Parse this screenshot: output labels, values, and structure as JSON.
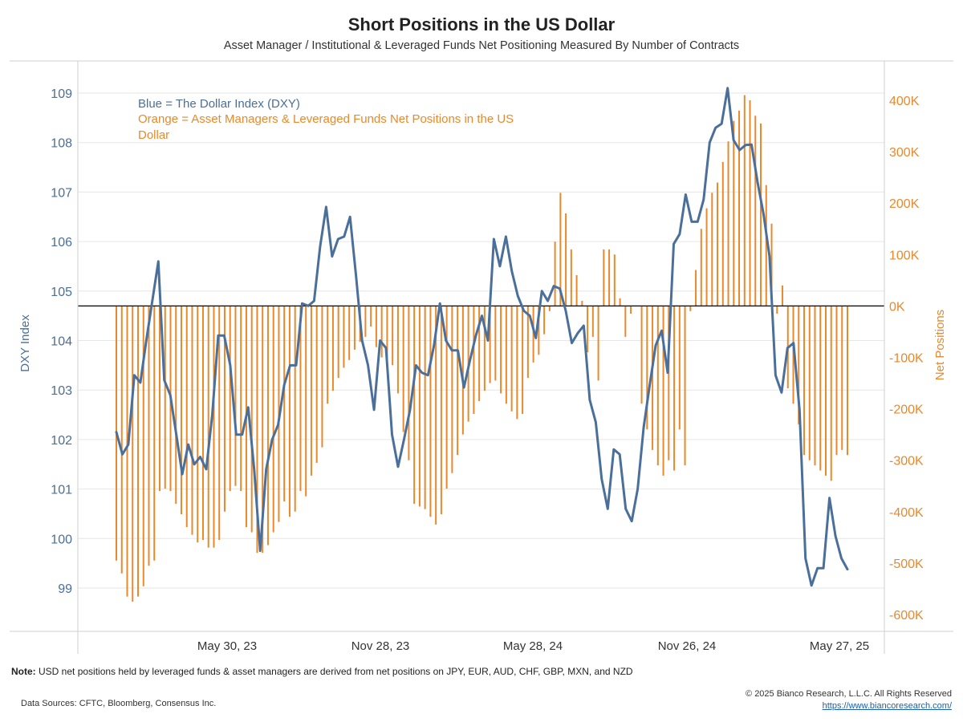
{
  "header": {
    "title": "Short Positions in the US Dollar",
    "subtitle": "Asset Manager / Institutional & Leveraged Funds Net Positioning Measured By Number of Contracts"
  },
  "footer": {
    "note_label": "Note:",
    "note_text": " USD net positions held by leveraged funds & asset managers are derived from net positions on JPY, EUR, AUD, CHF, GBP, MXN, and NZD",
    "sources": "Data Sources: CFTC, Bloomberg, Consensus Inc.",
    "copyright": "© 2025 Bianco Research, L.L.C. All Rights Reserved",
    "url": "https://www.biancoresearch.com/"
  },
  "chart_data": {
    "type": "line",
    "title": "Short Positions in the US Dollar",
    "subtitle": "Asset Manager / Institutional & Leveraged Funds Net Positioning Measured By Number of Contracts",
    "y_left_label": "DXY Index",
    "y_right_label": "Net Positions",
    "y_left_range": [
      98.2,
      109.6
    ],
    "y_right_range": [
      -630000,
      450000
    ],
    "y_left_ticks": [
      "109",
      "108",
      "107",
      "106",
      "105",
      "104",
      "103",
      "102",
      "101",
      "100",
      "99"
    ],
    "y_right_ticks": [
      "400K",
      "300K",
      "200K",
      "100K",
      "0K",
      "-100K",
      "-200K",
      "-300K",
      "-400K",
      "-500K",
      "-600K"
    ],
    "x_ticks": [
      "May 30, 23",
      "Nov 28, 23",
      "May 28, 24",
      "Nov 26, 24",
      "May 27, 25"
    ],
    "x_range": [
      "2023-01-03",
      "2025-06-10"
    ],
    "grid": true,
    "legend_text": {
      "blue": "Blue = The Dollar Index (DXY)",
      "orange": "Orange = Asset Managers & Leveraged Funds Net Positions in the US Dollar"
    },
    "colors": {
      "dxy": "#4a6f9a",
      "positions": "#e8892c",
      "zero_line": "#000000",
      "grid": "#e6e6e6"
    },
    "series": [
      {
        "name": "The Dollar Index (DXY)",
        "axis": "left",
        "values": [
          102.15,
          101.7,
          101.9,
          103.3,
          103.15,
          104.0,
          104.8,
          105.6,
          103.2,
          102.9,
          102.1,
          101.3,
          101.9,
          101.5,
          101.65,
          101.4,
          102.5,
          104.1,
          104.1,
          103.5,
          102.1,
          102.1,
          102.65,
          101.4,
          99.75,
          101.4,
          102.0,
          102.3,
          103.1,
          103.5,
          103.5,
          104.75,
          104.7,
          104.8,
          105.9,
          106.7,
          105.7,
          106.05,
          106.1,
          106.5,
          105.3,
          104.0,
          103.5,
          102.6,
          104.0,
          103.85,
          102.1,
          101.45,
          102.0,
          102.6,
          103.5,
          103.35,
          103.3,
          103.9,
          104.75,
          104.0,
          103.8,
          103.8,
          103.05,
          103.6,
          104.1,
          104.5,
          104.0,
          106.05,
          105.5,
          106.1,
          105.4,
          104.9,
          104.6,
          104.5,
          104.05,
          105.0,
          104.8,
          105.1,
          105.05,
          104.6,
          103.95,
          104.15,
          104.3,
          102.8,
          102.35,
          101.2,
          100.6,
          101.8,
          101.7,
          100.6,
          100.35,
          101.0,
          102.25,
          103.1,
          103.9,
          104.2,
          103.35,
          105.95,
          106.15,
          106.95,
          106.4,
          106.4,
          106.85,
          108.0,
          108.3,
          108.38,
          109.1,
          108.05,
          107.85,
          107.95,
          107.96,
          107.2,
          106.55,
          105.7,
          103.3,
          102.95,
          103.85,
          103.95,
          102.6,
          99.6,
          99.05,
          99.4,
          99.4,
          100.82,
          100.05,
          99.6,
          99.38
        ]
      },
      {
        "name": "Asset Managers & Leveraged Funds Net Positions in the US Dollar",
        "axis": "right",
        "values": [
          -495000,
          -520000,
          -565000,
          -575000,
          -565000,
          -545000,
          -505000,
          -495000,
          -360000,
          -355000,
          -360000,
          -385000,
          -405000,
          -430000,
          -445000,
          -460000,
          -455000,
          -470000,
          -470000,
          -455000,
          -400000,
          -360000,
          -350000,
          -360000,
          -430000,
          -440000,
          -480000,
          -480000,
          -465000,
          -440000,
          -420000,
          -380000,
          -410000,
          -400000,
          -360000,
          -370000,
          -330000,
          -305000,
          -275000,
          -190000,
          -165000,
          -140000,
          -120000,
          -105000,
          -85000,
          -70000,
          -60000,
          -40000,
          -80000,
          -100000,
          -115000,
          -115000,
          -170000,
          -245000,
          -300000,
          -385000,
          -390000,
          -395000,
          -410000,
          -425000,
          -405000,
          -355000,
          -325000,
          -290000,
          -250000,
          -225000,
          -210000,
          -185000,
          -165000,
          -150000,
          -145000,
          -170000,
          -190000,
          -205000,
          -220000,
          -210000,
          -140000,
          -110000,
          -95000,
          -55000,
          -10000,
          125000,
          220000,
          180000,
          110000,
          60000,
          10000,
          -90000,
          -60000,
          -145000,
          110000,
          110000,
          100000,
          15000,
          -60000,
          -15000,
          0,
          -190000,
          -240000,
          -280000,
          -310000,
          -330000,
          -300000,
          -320000,
          -240000,
          -310000,
          -10000,
          70000,
          150000,
          190000,
          220000,
          240000,
          280000,
          320000,
          360000,
          380000,
          410000,
          400000,
          370000,
          355000,
          235000,
          160000,
          -15000,
          40000,
          -160000,
          -190000,
          -230000,
          -290000,
          -300000,
          -310000,
          -320000,
          -330000,
          -340000,
          -290000,
          -280000,
          -290000
        ]
      }
    ]
  }
}
